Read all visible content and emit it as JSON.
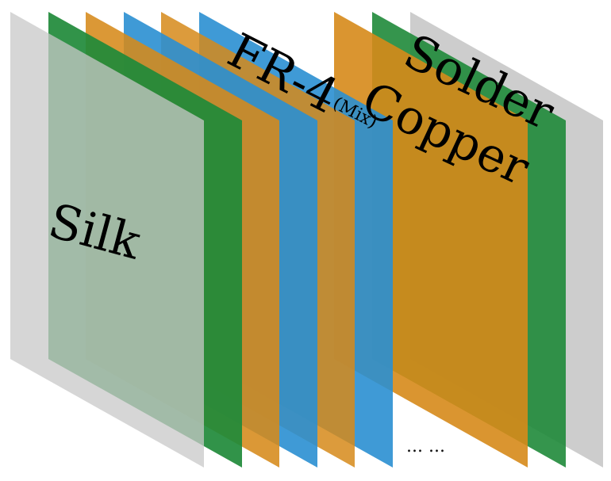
{
  "diagram": {
    "labels": {
      "silk": "Silk",
      "fr4": "FR-4",
      "mix": "(Mix)",
      "copper": "Copper",
      "solder": "Solder",
      "ellipsis": "... ..."
    },
    "layers_back_to_front": [
      {
        "id": "back-silk",
        "color": "#c8c8c8"
      },
      {
        "id": "back-solder",
        "color": "#1f8a3a"
      },
      {
        "id": "back-copper",
        "color": "#d68a1a"
      },
      {
        "id": "fr4-mix",
        "color": "#2a8fd1"
      },
      {
        "id": "copper-inner",
        "color": "#d68a1a"
      },
      {
        "id": "fr4",
        "color": "#2a8fd1"
      },
      {
        "id": "copper",
        "color": "#d68a1a"
      },
      {
        "id": "solder",
        "color": "#1f8a3a"
      },
      {
        "id": "silk",
        "color": "#c8c8c8"
      }
    ]
  }
}
